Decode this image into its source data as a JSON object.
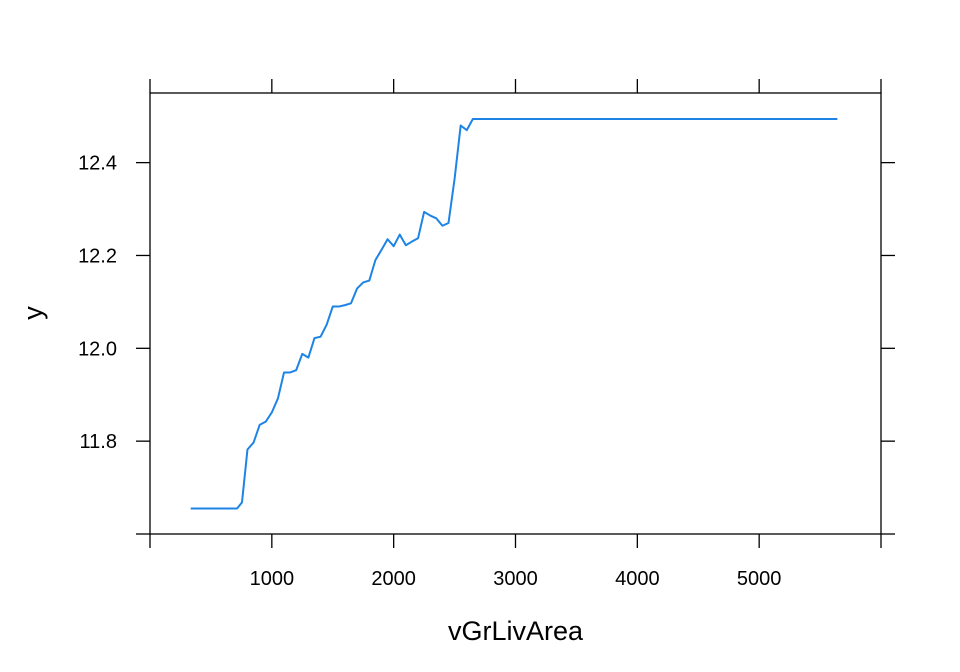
{
  "chart_data": {
    "type": "line",
    "title": "",
    "xlabel": "vGrLivArea",
    "ylabel": "y",
    "xlim": [
      0,
      6000
    ],
    "ylim": [
      11.6,
      12.55
    ],
    "xticks": [
      1000,
      2000,
      3000,
      4000,
      5000
    ],
    "xtick_labels": [
      "1000",
      "2000",
      "3000",
      "4000",
      "5000"
    ],
    "xticks_unlabeled": [
      0,
      6000
    ],
    "yticks": [
      11.8,
      12.0,
      12.2,
      12.4
    ],
    "ytick_labels": [
      "11.8",
      "12.0",
      "12.2",
      "12.4"
    ],
    "yticks_unlabeled": [
      11.6
    ],
    "grid": false,
    "legend": "none",
    "series_color": "#1d84e6",
    "series": [
      {
        "x": [
          334,
          400,
          500,
          600,
          715,
          755,
          800,
          850,
          900,
          950,
          1000,
          1050,
          1100,
          1150,
          1200,
          1250,
          1300,
          1350,
          1400,
          1450,
          1500,
          1550,
          1600,
          1650,
          1700,
          1750,
          1800,
          1850,
          1900,
          1950,
          2000,
          2050,
          2100,
          2150,
          2200,
          2250,
          2300,
          2350,
          2400,
          2450,
          2500,
          2550,
          2600,
          2650,
          2700,
          2750,
          2800,
          3000,
          4000,
          5000,
          5642
        ],
        "y": [
          11.655,
          11.655,
          11.655,
          11.655,
          11.655,
          11.668,
          11.782,
          11.797,
          11.835,
          11.842,
          11.862,
          11.892,
          11.948,
          11.948,
          11.953,
          11.988,
          11.98,
          12.022,
          12.025,
          12.051,
          12.09,
          12.09,
          12.093,
          12.097,
          12.129,
          12.142,
          12.146,
          12.19,
          12.212,
          12.235,
          12.22,
          12.245,
          12.222,
          12.23,
          12.237,
          12.294,
          12.286,
          12.28,
          12.264,
          12.27,
          12.365,
          12.48,
          12.47,
          12.494,
          12.494,
          12.494,
          12.494,
          12.494,
          12.494,
          12.494,
          12.494
        ]
      }
    ]
  }
}
